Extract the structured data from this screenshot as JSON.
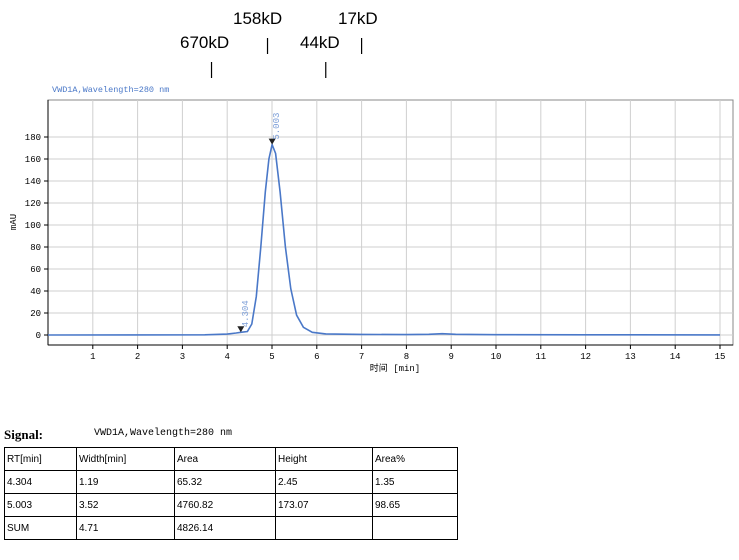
{
  "chart_data": {
    "type": "line",
    "title": "VWD1A,Wavelength=280 nm",
    "xlabel": "时间 [min]",
    "ylabel": "mAU",
    "xlim": [
      0,
      15
    ],
    "ylim": [
      -2,
      185
    ],
    "xticks": [
      1,
      2,
      3,
      4,
      5,
      6,
      7,
      8,
      9,
      10,
      11,
      12,
      13,
      14,
      15
    ],
    "yticks": [
      0,
      20,
      40,
      60,
      80,
      100,
      120,
      140,
      160,
      180
    ],
    "grid": true,
    "series": [
      {
        "points": [
          [
            0,
            0
          ],
          [
            3.5,
            0.2
          ],
          [
            4.0,
            0.8
          ],
          [
            4.2,
            1.8
          ],
          [
            4.304,
            2.45
          ],
          [
            4.45,
            3.2
          ],
          [
            4.55,
            10
          ],
          [
            4.65,
            35
          ],
          [
            4.75,
            80
          ],
          [
            4.85,
            130
          ],
          [
            4.93,
            160
          ],
          [
            5.003,
            173.07
          ],
          [
            5.08,
            165
          ],
          [
            5.18,
            130
          ],
          [
            5.3,
            80
          ],
          [
            5.42,
            42
          ],
          [
            5.55,
            18
          ],
          [
            5.7,
            7
          ],
          [
            5.9,
            2.5
          ],
          [
            6.2,
            1
          ],
          [
            7,
            0.5
          ],
          [
            8,
            0.4
          ],
          [
            8.5,
            0.6
          ],
          [
            8.8,
            1.2
          ],
          [
            9.1,
            0.6
          ],
          [
            10,
            0.3
          ],
          [
            12,
            0.2
          ],
          [
            15,
            0.1
          ]
        ]
      }
    ],
    "peak_labels": [
      {
        "x": 4.304,
        "y": 2.45,
        "text": "4.304"
      },
      {
        "x": 5.003,
        "y": 173.07,
        "text": "5.003"
      }
    ],
    "mw_markers": [
      {
        "text": "670kD",
        "x": 3.65
      },
      {
        "text": "158kD",
        "x": 4.9
      },
      {
        "text": "44kD",
        "x": 6.2
      },
      {
        "text": "17kD",
        "x": 7.0
      }
    ],
    "colors": {
      "trace": "#4a78c8",
      "label": "#7fa0d8",
      "grid": "#cfcfcf",
      "axis": "#000000"
    }
  },
  "signal": {
    "label": "Signal:",
    "value": "VWD1A,Wavelength=280 nm"
  },
  "table": {
    "headers": [
      "RT[min]",
      "Width[min]",
      "Area",
      "Height",
      "Area%"
    ],
    "rows": [
      [
        "4.304",
        "1.19",
        "65.32",
        "2.45",
        "1.35"
      ],
      [
        "5.003",
        "3.52",
        "4760.82",
        "173.07",
        "98.65"
      ],
      [
        "SUM",
        "4.71",
        "4826.14",
        "",
        ""
      ]
    ]
  }
}
